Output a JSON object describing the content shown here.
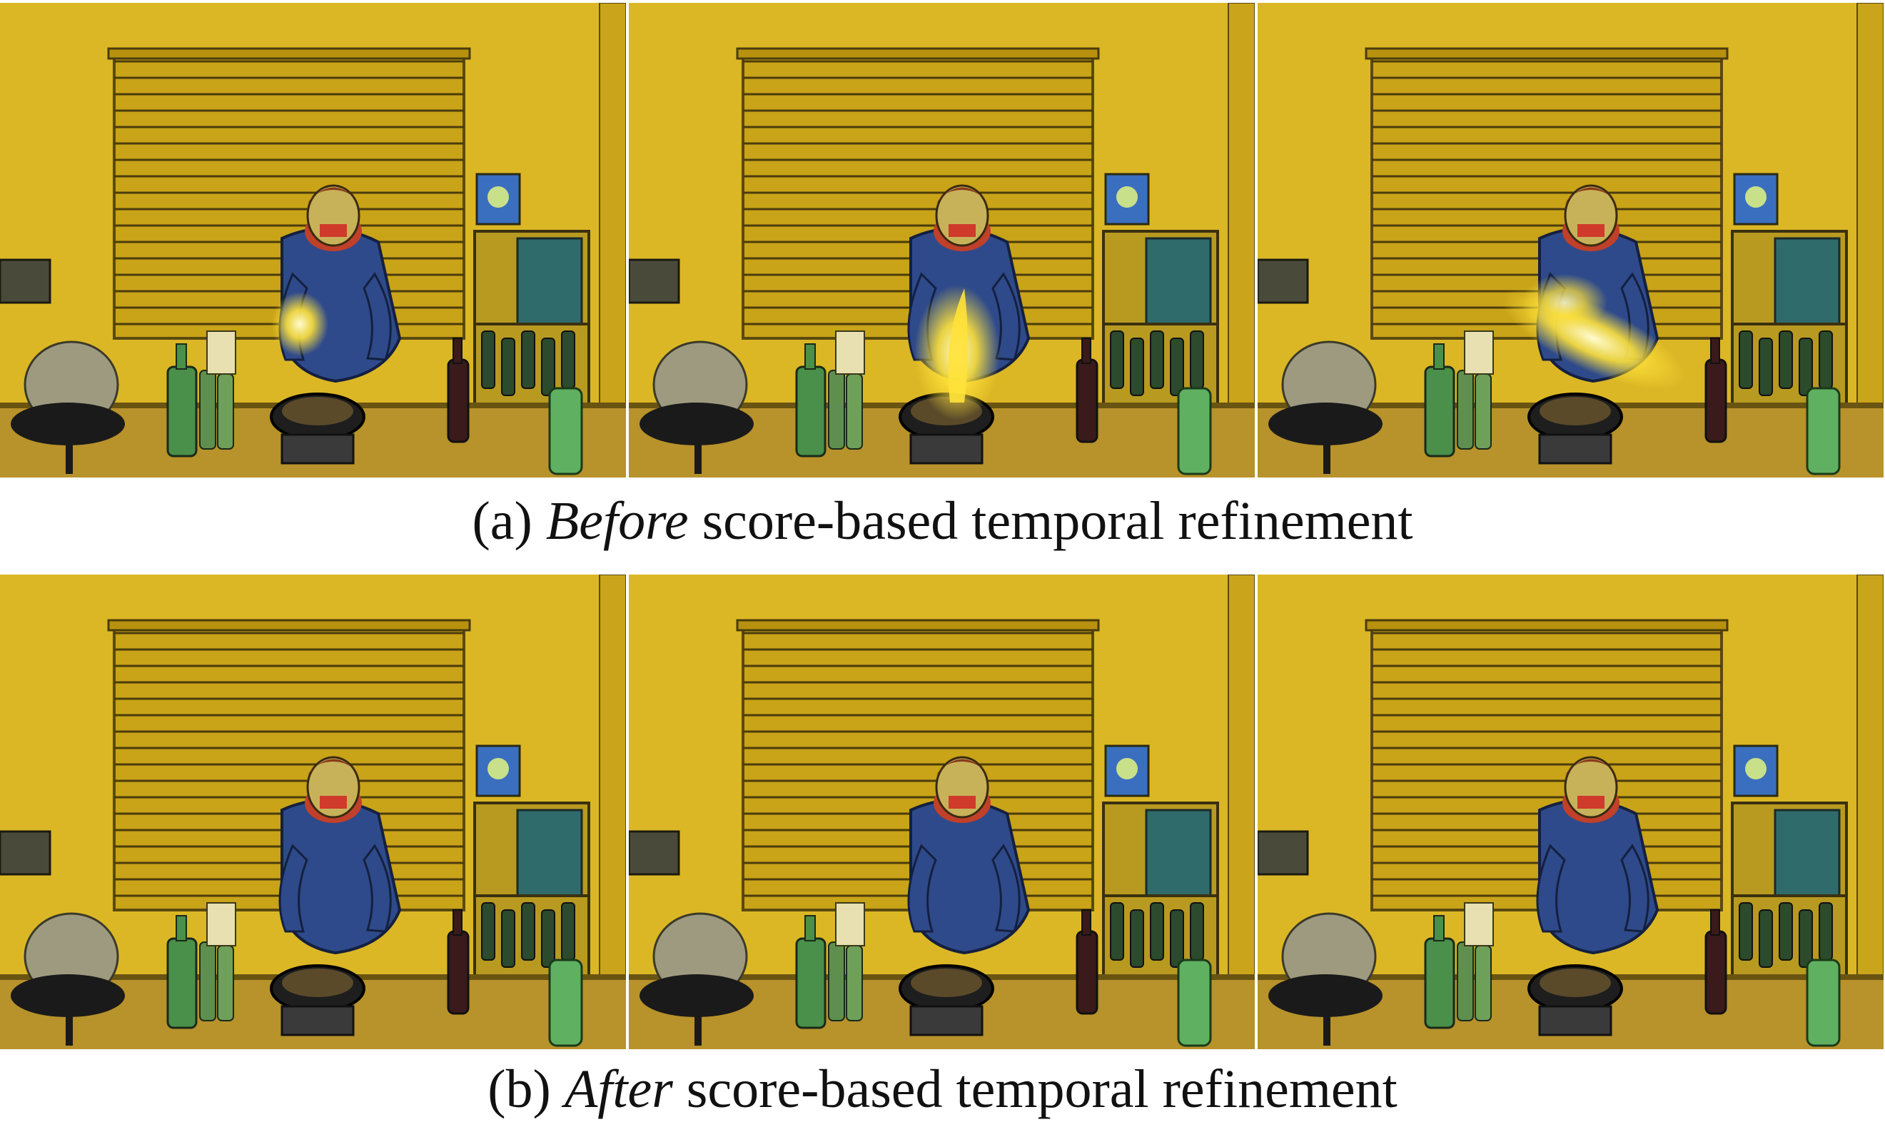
{
  "figure": {
    "panel_a": {
      "label": "(a)",
      "emphasis": "Before",
      "rest": "score-based temporal refinement",
      "frames": [
        {
          "has_flame": true,
          "flame_type": "small"
        },
        {
          "has_flame": true,
          "flame_type": "vertical"
        },
        {
          "has_flame": true,
          "flame_type": "diagonal"
        }
      ]
    },
    "panel_b": {
      "label": "(b)",
      "emphasis": "After",
      "rest": "score-based temporal refinement",
      "frames": [
        {
          "has_flame": false
        },
        {
          "has_flame": false
        },
        {
          "has_flame": false
        }
      ]
    },
    "colors": {
      "wall": "#d8b21e",
      "blind": "#c9a318",
      "shirt": "#2f4a8a",
      "bottle": "#4a8f4a",
      "flame": "#ffe23a"
    }
  }
}
